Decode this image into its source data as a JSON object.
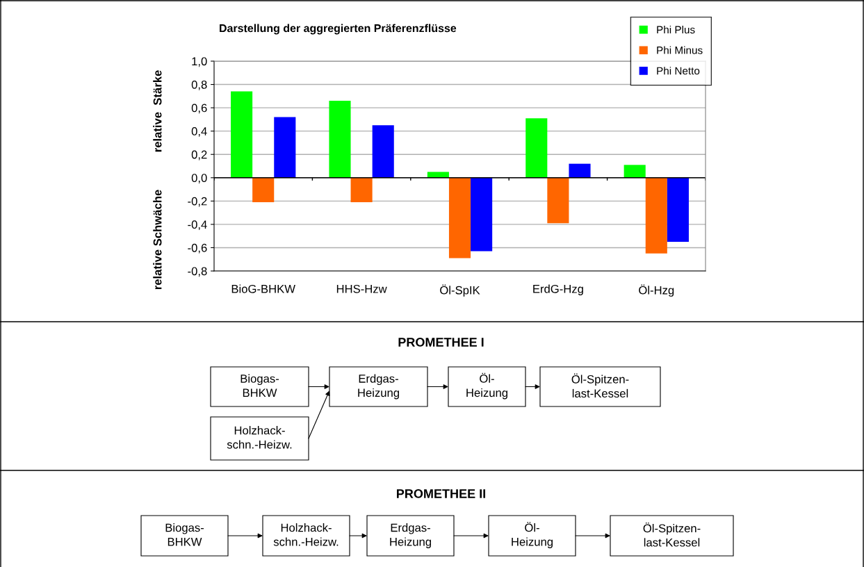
{
  "chart_data": [
    {
      "type": "bar",
      "title": "Darstellung der aggregierten Präferenzflüsse",
      "ylabel": "relative  Stärke",
      "annotations": [
        "relative Schwäche"
      ],
      "categories": [
        "BioG-BHKW",
        "HHS-Hzw",
        "Öl-SpIK",
        "ErdG-Hzg",
        "Öl-Hzg"
      ],
      "series": [
        {
          "name": "Phi Plus",
          "color": "#00ff00",
          "values": [
            0.74,
            0.66,
            0.05,
            0.51,
            0.11
          ]
        },
        {
          "name": "Phi Minus",
          "color": "#ff6600",
          "values": [
            -0.21,
            -0.21,
            -0.69,
            -0.39,
            -0.65
          ]
        },
        {
          "name": "Phi Netto",
          "color": "#0000ff",
          "values": [
            0.52,
            0.45,
            -0.63,
            0.12,
            -0.55
          ]
        }
      ],
      "ylim": [
        -0.8,
        1.0
      ],
      "yticks": [
        {
          "value": -0.8,
          "label": "-0,8"
        },
        {
          "value": -0.6,
          "label": "-0,6"
        },
        {
          "value": -0.4,
          "label": "-0,4"
        },
        {
          "value": -0.2,
          "label": "-0,2"
        },
        {
          "value": 0.0,
          "label": "0,0"
        },
        {
          "value": 0.2,
          "label": "0,2"
        },
        {
          "value": 0.4,
          "label": "0,4"
        },
        {
          "value": 0.6,
          "label": "0,6"
        },
        {
          "value": 0.8,
          "label": "0,8"
        },
        {
          "value": 1.0,
          "label": "1,0"
        }
      ],
      "grid": "y",
      "legend": "top right"
    },
    {
      "type": "other",
      "title": "PROMETHEE I",
      "annotations": [
        "Biogas-\nBHKW",
        "Erdgas-\nHeizung",
        "Öl-\nHeizung",
        "Öl-Spitzen-\nlast-Kessel",
        "Holzhack-\nschn.-Heizw."
      ]
    },
    {
      "type": "other",
      "title": "PROMETHEE II",
      "annotations": [
        "Biogas-\nBHKW",
        "Holzhack-\nschn.-Heizw.",
        "Erdgas-\nHeizung",
        "Öl-\nHeizung",
        "Öl-Spitzen-\nlast-Kessel"
      ]
    }
  ]
}
